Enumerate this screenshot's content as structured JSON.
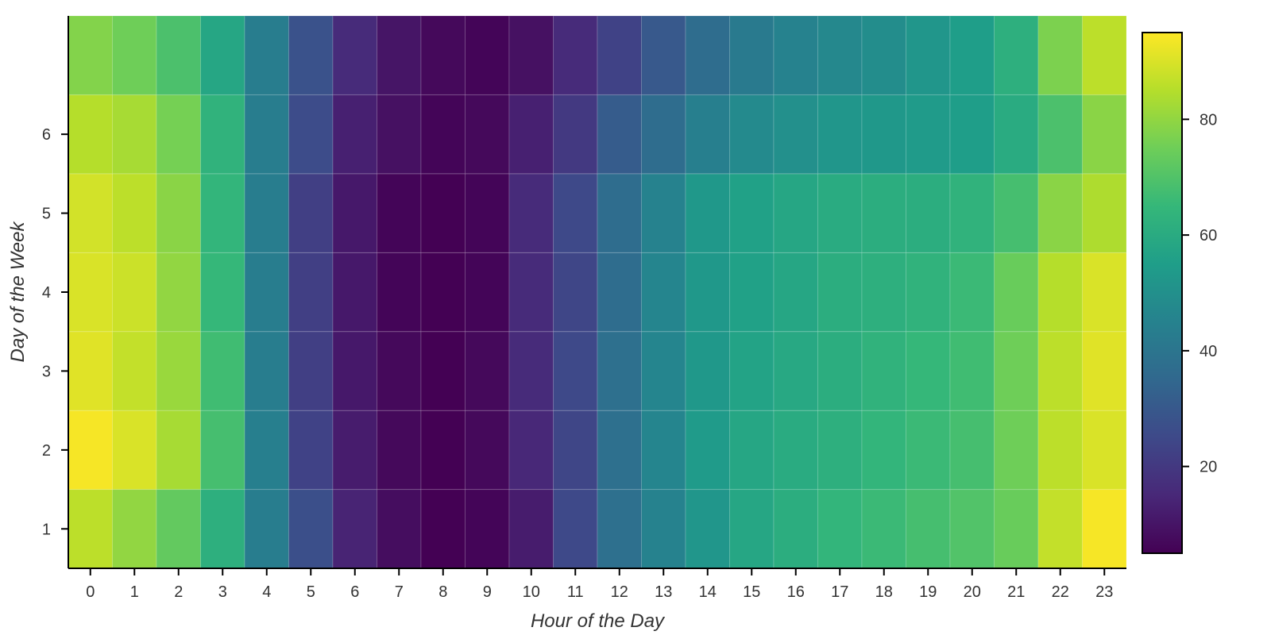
{
  "chart_data": {
    "type": "heatmap",
    "title": "",
    "xlabel": "Hour of the Day",
    "ylabel": "Day of the Week",
    "x_categories": [
      "0",
      "1",
      "2",
      "3",
      "4",
      "5",
      "6",
      "7",
      "8",
      "9",
      "10",
      "11",
      "12",
      "13",
      "14",
      "15",
      "16",
      "17",
      "18",
      "19",
      "20",
      "21",
      "22",
      "23"
    ],
    "y_categories": [
      "1",
      "2",
      "3",
      "4",
      "5",
      "6",
      ""
    ],
    "values": [
      [
        86,
        80,
        73,
        62,
        43,
        27,
        14,
        8,
        5,
        6,
        12,
        25,
        38,
        45,
        52,
        58,
        61,
        64,
        66,
        68,
        70,
        74,
        87,
        94
      ],
      [
        94,
        90,
        83,
        68,
        44,
        23,
        12,
        7,
        5,
        7,
        15,
        24,
        38,
        46,
        54,
        58,
        60,
        62,
        64,
        66,
        68,
        75,
        86,
        90
      ],
      [
        91,
        87,
        81,
        67,
        43,
        22,
        11,
        7,
        4,
        7,
        16,
        25,
        38,
        46,
        53,
        57,
        59,
        61,
        63,
        65,
        67,
        75,
        86,
        91
      ],
      [
        90,
        88,
        80,
        65,
        43,
        22,
        11,
        6,
        4,
        6,
        16,
        24,
        37,
        46,
        53,
        56,
        58,
        61,
        62,
        63,
        66,
        74,
        85,
        90
      ],
      [
        89,
        86,
        79,
        64,
        43,
        22,
        11,
        6,
        4,
        6,
        16,
        25,
        37,
        45,
        53,
        56,
        58,
        60,
        61,
        61,
        63,
        68,
        79,
        84
      ],
      [
        85,
        83,
        76,
        63,
        43,
        26,
        13,
        9,
        6,
        7,
        13,
        20,
        31,
        37,
        44,
        48,
        50,
        52,
        53,
        54,
        55,
        60,
        69,
        79
      ],
      [
        78,
        75,
        69,
        58,
        43,
        28,
        16,
        10,
        7,
        6,
        9,
        16,
        23,
        30,
        37,
        42,
        45,
        47,
        49,
        52,
        55,
        62,
        77,
        86
      ]
    ],
    "colorbar": {
      "min": 5,
      "max": 95,
      "ticks": [
        20,
        40,
        60,
        80
      ]
    },
    "colormap": [
      "#440154",
      "#482878",
      "#3e4989",
      "#31688e",
      "#26828e",
      "#1f9e89",
      "#35b779",
      "#6ece58",
      "#b5de2b",
      "#fde725"
    ]
  }
}
